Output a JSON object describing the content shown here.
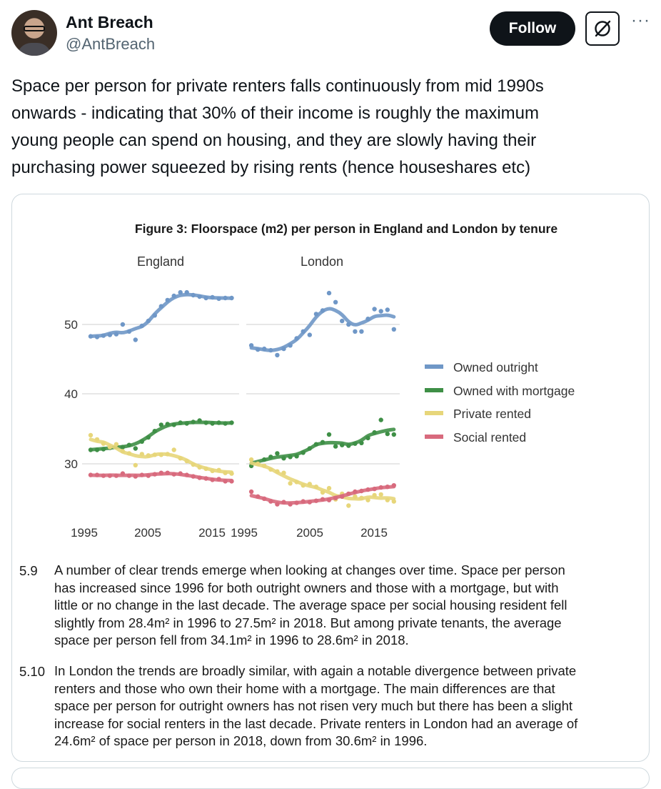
{
  "user": {
    "name": "Ant Breach",
    "handle": "@AntBreach",
    "follow_label": "Follow"
  },
  "tweet": {
    "text": "Space per person for private renters falls continuously from mid 1990s\nonwards - indicating that 30% of their income is roughly the maximum\nyoung people can spend on housing, and they are slowly having their\npurchasing power squeezed by rising rents (hence houseshares etc)"
  },
  "colors": {
    "owned_outright": "#6f97c7",
    "owned_with_mortgage": "#3e8f46",
    "private_rented": "#e7d67a",
    "social_rented": "#d86a7d"
  },
  "figure": {
    "title": "Figure 3: Floorspace (m2) per person in England and London by tenure",
    "panels": [
      "England",
      "London"
    ],
    "legend": [
      "Owned outright",
      "Owned with mortgage",
      "Private rented",
      "Social rented"
    ],
    "y_ticks": [
      "50",
      "40",
      "30"
    ],
    "x_ticks_england": [
      "1995",
      "2005",
      "2015"
    ],
    "x_ticks_london": [
      "1995",
      "2005",
      "2015"
    ]
  },
  "chart_data": {
    "type": "scatter",
    "title": "Figure 3: Floorspace (m2) per person in England and London by tenure",
    "ylim": [
      23,
      58
    ],
    "legend_position": "right",
    "panels": [
      {
        "name": "England",
        "xlim": [
          1994,
          2019
        ],
        "series": [
          {
            "name": "Owned outright",
            "x": [
              1996,
              1997,
              1998,
              1999,
              2000,
              2001,
              2002,
              2003,
              2004,
              2005,
              2006,
              2007,
              2008,
              2009,
              2010,
              2011,
              2012,
              2013,
              2014,
              2015,
              2016,
              2017,
              2018
            ],
            "y": [
              48.3,
              48.2,
              48.4,
              48.5,
              48.6,
              50.0,
              49.0,
              47.8,
              49.8,
              50.5,
              51.3,
              52.6,
              53.5,
              54.1,
              54.6,
              54.6,
              54.2,
              54.0,
              53.8,
              53.9,
              53.7,
              53.8,
              53.8
            ]
          },
          {
            "name": "Owned with mortgage",
            "x": [
              1996,
              1997,
              1998,
              1999,
              2000,
              2001,
              2002,
              2003,
              2004,
              2005,
              2006,
              2007,
              2008,
              2009,
              2010,
              2011,
              2012,
              2013,
              2014,
              2015,
              2016,
              2017,
              2018
            ],
            "y": [
              32.0,
              32.0,
              32.1,
              32.3,
              32.5,
              32.4,
              32.7,
              32.2,
              33.2,
              33.8,
              34.7,
              35.6,
              35.7,
              35.6,
              35.9,
              35.8,
              36.0,
              36.2,
              35.9,
              35.8,
              35.9,
              35.8,
              35.9
            ]
          },
          {
            "name": "Private rented",
            "x": [
              1996,
              1997,
              1998,
              1999,
              2000,
              2001,
              2002,
              2003,
              2004,
              2005,
              2006,
              2007,
              2008,
              2009,
              2010,
              2011,
              2012,
              2013,
              2014,
              2015,
              2016,
              2017,
              2018
            ],
            "y": [
              34.1,
              33.5,
              32.9,
              32.4,
              32.8,
              31.8,
              31.5,
              29.8,
              31.4,
              31.2,
              31.3,
              31.3,
              31.4,
              32.0,
              30.8,
              30.4,
              29.9,
              29.5,
              29.3,
              29.0,
              29.1,
              28.7,
              28.6
            ]
          },
          {
            "name": "Social rented",
            "x": [
              1996,
              1997,
              1998,
              1999,
              2000,
              2001,
              2002,
              2003,
              2004,
              2005,
              2006,
              2007,
              2008,
              2009,
              2010,
              2011,
              2012,
              2013,
              2014,
              2015,
              2016,
              2017,
              2018
            ],
            "y": [
              28.4,
              28.4,
              28.3,
              28.3,
              28.3,
              28.6,
              28.3,
              28.2,
              28.4,
              28.3,
              28.5,
              28.7,
              28.7,
              28.5,
              28.6,
              28.4,
              28.2,
              28.0,
              27.9,
              27.7,
              27.8,
              27.5,
              27.5
            ]
          }
        ]
      },
      {
        "name": "London",
        "xlim": [
          1994,
          2019
        ],
        "series": [
          {
            "name": "Owned outright",
            "x": [
              1996,
              1997,
              1998,
              1999,
              2000,
              2001,
              2002,
              2003,
              2004,
              2005,
              2006,
              2007,
              2008,
              2009,
              2010,
              2011,
              2012,
              2013,
              2014,
              2015,
              2016,
              2017,
              2018
            ],
            "y": [
              47.0,
              46.4,
              46.5,
              46.3,
              45.6,
              46.5,
              47.0,
              48.0,
              49.0,
              48.5,
              51.5,
              52.0,
              54.5,
              53.2,
              50.5,
              50.0,
              49.0,
              49.0,
              50.8,
              52.2,
              51.9,
              52.1,
              49.3
            ]
          },
          {
            "name": "Owned with mortgage",
            "x": [
              1996,
              1997,
              1998,
              1999,
              2000,
              2001,
              2002,
              2003,
              2004,
              2005,
              2006,
              2007,
              2008,
              2009,
              2010,
              2011,
              2012,
              2013,
              2014,
              2015,
              2016,
              2017,
              2018
            ],
            "y": [
              29.7,
              30.0,
              30.6,
              31.0,
              31.5,
              30.8,
              31.0,
              31.1,
              31.6,
              32.2,
              32.8,
              33.1,
              34.2,
              32.5,
              32.7,
              32.6,
              32.9,
              33.0,
              33.7,
              34.5,
              36.3,
              34.3,
              34.2
            ]
          },
          {
            "name": "Private rented",
            "x": [
              1996,
              1997,
              1998,
              1999,
              2000,
              2001,
              2002,
              2003,
              2004,
              2005,
              2006,
              2007,
              2008,
              2009,
              2010,
              2011,
              2012,
              2013,
              2014,
              2015,
              2016,
              2017,
              2018
            ],
            "y": [
              30.6,
              30.0,
              29.7,
              29.2,
              28.9,
              28.7,
              27.2,
              27.4,
              26.9,
              27.1,
              26.7,
              25.9,
              26.5,
              24.9,
              25.7,
              24.0,
              25.3,
              25.1,
              24.8,
              25.5,
              25.6,
              24.8,
              24.6
            ]
          },
          {
            "name": "Social rented",
            "x": [
              1996,
              1997,
              1998,
              1999,
              2000,
              2001,
              2002,
              2003,
              2004,
              2005,
              2006,
              2007,
              2008,
              2009,
              2010,
              2011,
              2012,
              2013,
              2014,
              2015,
              2016,
              2017,
              2018
            ],
            "y": [
              26.0,
              25.3,
              25.0,
              24.6,
              24.2,
              24.5,
              24.2,
              24.4,
              24.6,
              24.5,
              24.7,
              24.9,
              24.8,
              25.1,
              25.3,
              25.7,
              26.0,
              26.1,
              26.3,
              26.4,
              26.6,
              26.7,
              26.9
            ]
          }
        ]
      }
    ]
  },
  "paragraphs": [
    {
      "number": "5.9",
      "lines": [
        "A number of clear trends emerge when looking at changes over time. Space per person",
        "has increased since 1996 for both outright owners and those with a mortgage, but with",
        "little or no change in the last decade. The average space per social housing resident fell",
        "slightly from 28.4m² in 1996 to 27.5m² in 2018. But among private tenants, the average",
        "space per person fell from 34.1m² in 1996 to 28.6m² in 2018."
      ]
    },
    {
      "number": "5.10",
      "lines": [
        "In London the trends are broadly similar, with again a notable divergence between private",
        "renters and those who own their home with a mortgage. The main differences are that",
        "space per person for outright owners has not risen very much but there has been a slight",
        "increase for social renters in the last decade. Private renters in London had an average of",
        "24.6m² of space per person in 2018, down from 30.6m² in 1996."
      ]
    }
  ]
}
